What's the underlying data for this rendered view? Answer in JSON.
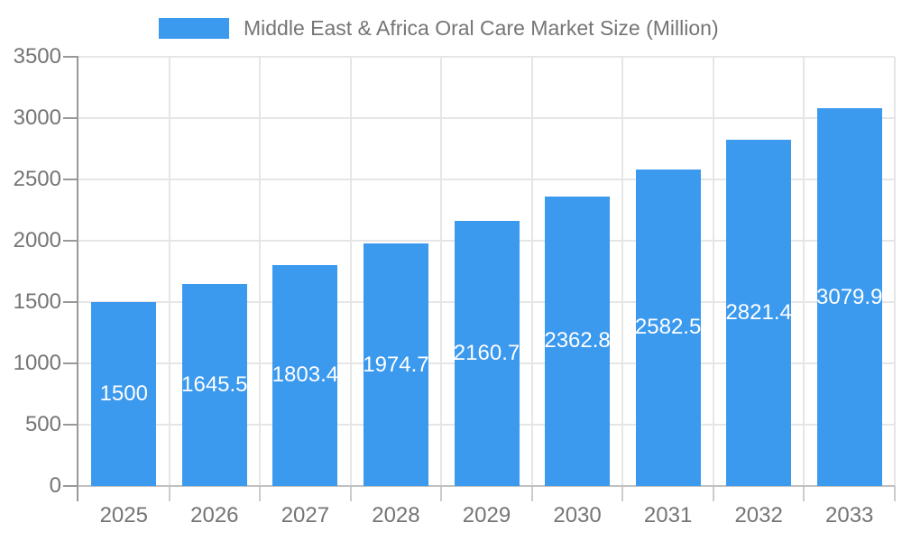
{
  "legend": {
    "label": "Middle East & Africa Oral Care Market Size (Million)"
  },
  "colors": {
    "background": "#ffffff",
    "bar": "#3b99ee",
    "bar_label_text": "#ffffff",
    "axis_text": "#757575",
    "legend_text": "#757575",
    "gridline": "#e6e6e6",
    "axis_line": "#999999",
    "baseline": "#c0c0c0",
    "tick": "#cccccc"
  },
  "chart_data": {
    "type": "bar",
    "title": "Middle East & Africa Oral Care Market Size (Million)",
    "categories": [
      "2025",
      "2026",
      "2027",
      "2028",
      "2029",
      "2030",
      "2031",
      "2032",
      "2033"
    ],
    "values": [
      1500,
      1645.5,
      1803.4,
      1974.7,
      2160.7,
      2362.8,
      2582.5,
      2821.4,
      3079.9
    ],
    "bar_labels": [
      "1500",
      "1645.5",
      "1803.4",
      "1974.7",
      "2160.7",
      "2362.8",
      "2582.5",
      "2821.4",
      "3079.9"
    ],
    "series": [
      {
        "name": "Middle East & Africa Oral Care Market Size (Million)",
        "values": [
          1500,
          1645.5,
          1803.4,
          1974.7,
          2160.7,
          2362.8,
          2582.5,
          2821.4,
          3079.9
        ]
      }
    ],
    "xlabel": "",
    "ylabel": "",
    "ylim": [
      0,
      3500
    ],
    "yticks": [
      0,
      500,
      1000,
      1500,
      2000,
      2500,
      3000,
      3500
    ],
    "grid": true,
    "legend_position": "top",
    "bar_value_labels": "centered-inside-bars"
  }
}
